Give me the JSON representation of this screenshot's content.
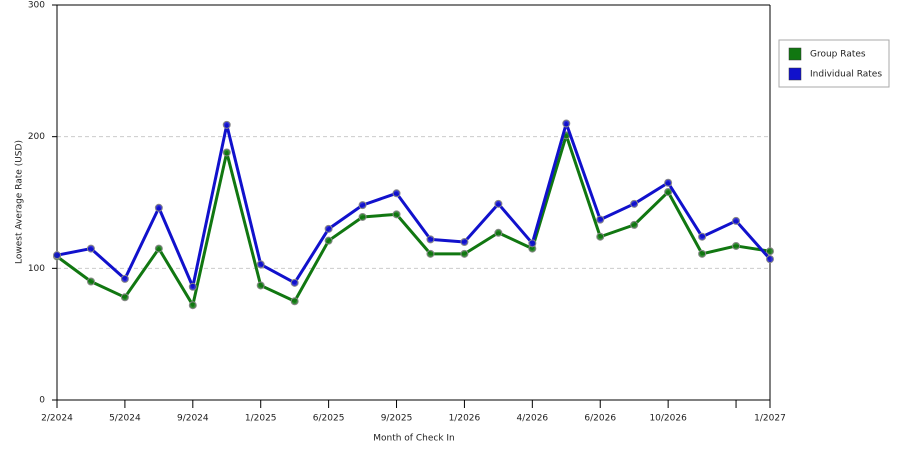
{
  "chart_data": {
    "type": "line",
    "x_label": "Month of Check In",
    "y_label": "Lowest Average Rate (USD)",
    "categories": [
      "2/2024",
      null,
      "5/2024",
      null,
      "9/2024",
      null,
      "1/2025",
      null,
      "6/2025",
      null,
      "9/2025",
      null,
      "1/2026",
      null,
      "4/2026",
      null,
      "6/2026",
      null,
      "10/2026",
      null,
      null,
      "1/2027"
    ],
    "series": [
      {
        "name": "Group Rates",
        "color": "#117711",
        "values": [
          109,
          90,
          78,
          115,
          72,
          188,
          87,
          75,
          121,
          139,
          141,
          111,
          111,
          127,
          115,
          201,
          124,
          133,
          158,
          111,
          117,
          113
        ]
      },
      {
        "name": "Individual Rates",
        "color": "#1111cc",
        "values": [
          110,
          115,
          92,
          146,
          86,
          209,
          103,
          89,
          130,
          148,
          157,
          122,
          120,
          149,
          119,
          210,
          137,
          149,
          165,
          124,
          136,
          107
        ]
      }
    ],
    "ylim": [
      0,
      300
    ],
    "yticks": [
      0,
      100,
      200,
      300
    ],
    "grid": true,
    "legend": "right"
  }
}
